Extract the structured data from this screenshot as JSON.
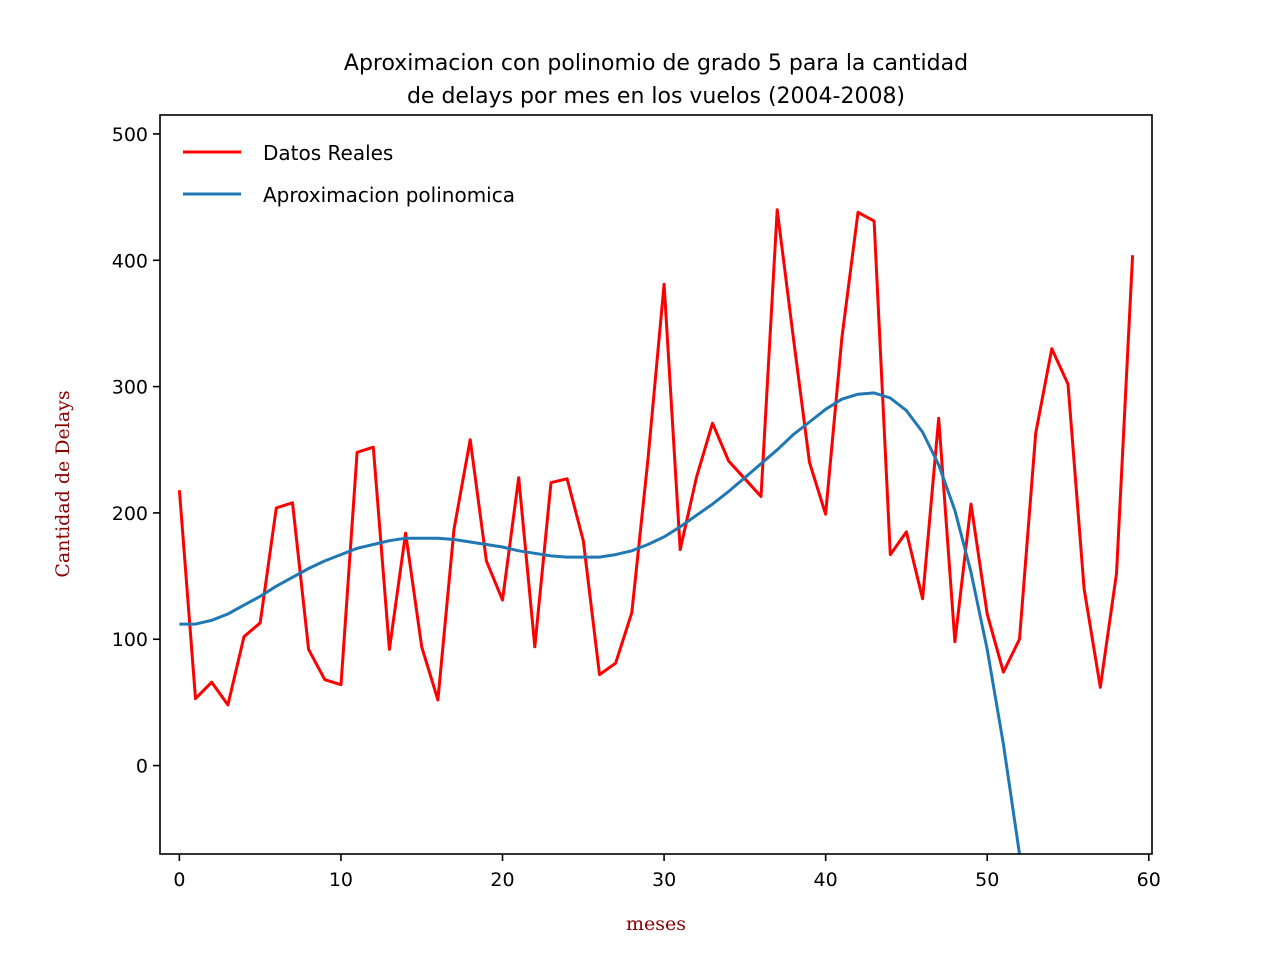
{
  "chart_data": {
    "type": "line",
    "title_lines": [
      "Aproximacion con polinomio de grado 5 para la cantidad",
      "de delays por mes en los vuelos (2004-2008)"
    ],
    "xlabel": "meses",
    "ylabel": "Cantidad de Delays",
    "label_color": "#8b0000",
    "xlim": [
      -1.2,
      60.2
    ],
    "ylim": [
      -70,
      515
    ],
    "x_ticks": [
      "0",
      "10",
      "20",
      "30",
      "40",
      "50",
      "60"
    ],
    "y_ticks": [
      "0",
      "100",
      "200",
      "300",
      "400",
      "500"
    ],
    "grid": false,
    "legend_position": "upper-left",
    "series": [
      {
        "name": "Datos Reales",
        "color": "#ff0000",
        "x": [
          0,
          1,
          2,
          3,
          4,
          5,
          6,
          7,
          8,
          9,
          10,
          11,
          12,
          13,
          14,
          15,
          16,
          17,
          18,
          19,
          20,
          21,
          22,
          23,
          24,
          25,
          26,
          27,
          28,
          29,
          30,
          31,
          32,
          33,
          34,
          35,
          36,
          37,
          38,
          39,
          40,
          41,
          42,
          43,
          44,
          45,
          46,
          47,
          48,
          49,
          50,
          51,
          52,
          53,
          54,
          55,
          56,
          57,
          58,
          59
        ],
        "y": [
          218,
          53,
          66,
          48,
          102,
          113,
          204,
          208,
          92,
          68,
          64,
          248,
          252,
          92,
          184,
          94,
          52,
          187,
          258,
          162,
          131,
          228,
          94,
          224,
          227,
          178,
          72,
          81,
          121,
          242,
          381,
          171,
          228,
          271,
          241,
          227,
          213,
          440,
          339,
          240,
          199,
          338,
          438,
          431,
          167,
          185,
          132,
          275,
          98,
          207,
          120,
          74,
          100,
          263,
          330,
          302,
          140,
          62,
          152,
          404
        ]
      },
      {
        "name": "Aproximacion polinomica",
        "color": "#1f77b4",
        "x": [
          0,
          1,
          2,
          3,
          4,
          5,
          6,
          7,
          8,
          9,
          10,
          11,
          12,
          13,
          14,
          15,
          16,
          17,
          18,
          19,
          20,
          21,
          22,
          23,
          24,
          25,
          26,
          27,
          28,
          29,
          30,
          31,
          32,
          33,
          34,
          35,
          36,
          37,
          38,
          39,
          40,
          41,
          42,
          43,
          44,
          45,
          46,
          47,
          48,
          49,
          50,
          51,
          52
        ],
        "y": [
          112,
          112,
          115,
          120,
          127,
          134,
          142,
          149,
          156,
          162,
          167,
          172,
          175,
          178,
          180,
          180,
          180,
          179,
          177,
          175,
          173,
          170,
          168,
          166,
          165,
          165,
          165,
          167,
          170,
          175,
          181,
          189,
          198,
          207,
          217,
          228,
          239,
          250,
          262,
          272,
          282,
          290,
          294,
          295,
          291,
          281,
          264,
          238,
          202,
          153,
          92,
          17,
          -70
        ]
      }
    ]
  }
}
